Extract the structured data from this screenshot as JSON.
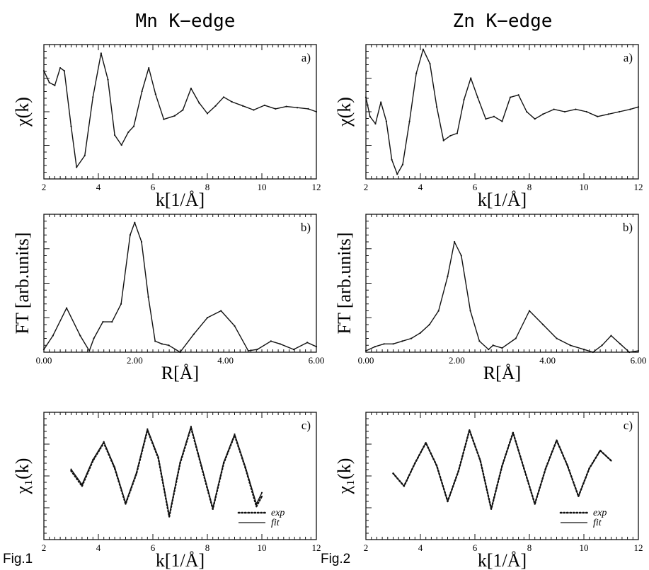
{
  "column_titles": [
    "Mn K−edge",
    "Zn K−edge"
  ],
  "figure_labels": [
    "Fig.1",
    "Fig.2"
  ],
  "chart_data": [
    {
      "id": "mn-a",
      "type": "line",
      "panel_label": "a)",
      "figure": "Fig.1",
      "xlabel": "k[1/Å]",
      "ylabel": "χ(k)",
      "xlim": [
        2,
        12
      ],
      "ylim": [
        -1.3,
        1.0
      ],
      "xticks": [
        2,
        4,
        6,
        8,
        10,
        12
      ],
      "xtick_labels": [
        "2",
        "4",
        "6",
        "8",
        "10",
        "12"
      ],
      "series": [
        {
          "style": "solid",
          "x": [
            2.0,
            2.2,
            2.4,
            2.6,
            2.75,
            3.0,
            3.2,
            3.5,
            3.8,
            4.1,
            4.35,
            4.6,
            4.85,
            5.1,
            5.3,
            5.6,
            5.85,
            6.1,
            6.4,
            6.8,
            7.1,
            7.4,
            7.7,
            8.0,
            8.3,
            8.6,
            8.9,
            9.3,
            9.7,
            10.1,
            10.5,
            10.9,
            11.3,
            11.7,
            12.0
          ],
          "y": [
            0.55,
            0.35,
            0.3,
            0.6,
            0.55,
            -0.4,
            -1.1,
            -0.9,
            0.1,
            0.85,
            0.4,
            -0.55,
            -0.72,
            -0.5,
            -0.4,
            0.2,
            0.6,
            0.15,
            -0.28,
            -0.22,
            -0.12,
            0.25,
            0.0,
            -0.18,
            -0.05,
            0.1,
            0.02,
            -0.05,
            -0.12,
            -0.04,
            -0.1,
            -0.06,
            -0.08,
            -0.1,
            -0.15
          ]
        }
      ]
    },
    {
      "id": "zn-a",
      "type": "line",
      "panel_label": "a)",
      "figure": "Fig.2",
      "xlabel": "k[1/Å]",
      "ylabel": "χ(k)",
      "xlim": [
        2,
        12
      ],
      "ylim": [
        -1.4,
        1.4
      ],
      "xticks": [
        2,
        4,
        6,
        8,
        10,
        12
      ],
      "xtick_labels": [
        "2",
        "4",
        "6",
        "8",
        "10",
        "12"
      ],
      "series": [
        {
          "style": "solid",
          "x": [
            2.0,
            2.15,
            2.35,
            2.55,
            2.75,
            2.95,
            3.15,
            3.35,
            3.6,
            3.85,
            4.1,
            4.35,
            4.6,
            4.85,
            5.1,
            5.35,
            5.6,
            5.85,
            6.1,
            6.4,
            6.7,
            7.0,
            7.3,
            7.6,
            7.9,
            8.2,
            8.5,
            8.9,
            9.3,
            9.7,
            10.1,
            10.5,
            10.9,
            11.3,
            11.7,
            12.0
          ],
          "y": [
            0.3,
            -0.1,
            -0.25,
            0.2,
            -0.2,
            -1.0,
            -1.3,
            -1.1,
            -0.2,
            0.8,
            1.3,
            1.0,
            0.1,
            -0.6,
            -0.5,
            -0.45,
            0.25,
            0.7,
            0.3,
            -0.15,
            -0.1,
            -0.2,
            0.3,
            0.35,
            0.0,
            -0.15,
            -0.05,
            0.05,
            0.0,
            0.05,
            0.0,
            -0.1,
            -0.05,
            0.0,
            0.05,
            0.1
          ]
        }
      ]
    },
    {
      "id": "mn-b",
      "type": "line",
      "panel_label": "b)",
      "figure": "Fig.1",
      "xlabel": "R[Å]",
      "ylabel": "FT [arb.units]",
      "xlim": [
        0,
        6
      ],
      "ylim": [
        0,
        1.0
      ],
      "xticks": [
        0,
        2,
        4,
        6
      ],
      "xtick_labels": [
        "0.00",
        "2.00",
        "4.00",
        "6.00"
      ],
      "series": [
        {
          "style": "solid",
          "x": [
            0.0,
            0.2,
            0.5,
            0.8,
            1.0,
            1.1,
            1.3,
            1.5,
            1.7,
            1.9,
            2.0,
            2.15,
            2.3,
            2.45,
            2.6,
            2.75,
            3.0,
            3.3,
            3.6,
            3.9,
            4.2,
            4.5,
            4.7,
            5.0,
            5.2,
            5.5,
            5.8,
            6.0
          ],
          "y": [
            0.02,
            0.12,
            0.32,
            0.12,
            0.01,
            0.1,
            0.22,
            0.22,
            0.35,
            0.85,
            0.94,
            0.8,
            0.4,
            0.08,
            0.06,
            0.05,
            0.0,
            0.13,
            0.25,
            0.3,
            0.19,
            0.01,
            0.02,
            0.08,
            0.06,
            0.02,
            0.07,
            0.04
          ]
        }
      ]
    },
    {
      "id": "zn-b",
      "type": "line",
      "panel_label": "b)",
      "figure": "Fig.2",
      "xlabel": "R[Å]",
      "ylabel": "FT [arb.units]",
      "xlim": [
        0,
        6
      ],
      "ylim": [
        0,
        1.0
      ],
      "xticks": [
        0,
        2,
        4,
        6
      ],
      "xtick_labels": [
        "0.00",
        "2.00",
        "4.00",
        "6.00"
      ],
      "series": [
        {
          "style": "solid",
          "x": [
            0.0,
            0.2,
            0.4,
            0.6,
            0.8,
            1.0,
            1.2,
            1.4,
            1.6,
            1.8,
            1.95,
            2.1,
            2.3,
            2.5,
            2.7,
            2.8,
            3.0,
            3.3,
            3.6,
            3.9,
            4.2,
            4.5,
            4.8,
            5.0,
            5.2,
            5.4,
            5.6,
            5.8,
            6.0
          ],
          "y": [
            0.01,
            0.04,
            0.06,
            0.06,
            0.08,
            0.1,
            0.14,
            0.2,
            0.3,
            0.55,
            0.8,
            0.7,
            0.3,
            0.08,
            0.02,
            0.05,
            0.03,
            0.1,
            0.3,
            0.2,
            0.1,
            0.05,
            0.02,
            0.0,
            0.05,
            0.12,
            0.06,
            0.0,
            0.01
          ]
        }
      ]
    },
    {
      "id": "mn-c",
      "type": "line",
      "panel_label": "c)",
      "figure": "Fig.1",
      "xlabel": "k[1/Å]",
      "ylabel": "χ₁(k)",
      "xlim": [
        2,
        12
      ],
      "ylim": [
        -1.3,
        1.2
      ],
      "xticks": [
        2,
        4,
        6,
        8,
        10,
        12
      ],
      "xtick_labels": [
        "2",
        "4",
        "6",
        "8",
        "10",
        "12"
      ],
      "legend": {
        "position": "bottom-right",
        "entries": [
          {
            "label": "exp",
            "style": "dotted"
          },
          {
            "label": "fit",
            "style": "solid"
          }
        ]
      },
      "series": [
        {
          "name": "exp",
          "style": "dotted",
          "x": [
            3.0,
            3.4,
            3.8,
            4.2,
            4.6,
            5.0,
            5.4,
            5.8,
            6.2,
            6.6,
            7.0,
            7.4,
            7.8,
            8.2,
            8.6,
            9.0,
            9.4,
            9.8,
            10.0
          ],
          "y": [
            0.05,
            -0.25,
            0.25,
            0.6,
            0.1,
            -0.6,
            0.0,
            0.85,
            0.3,
            -0.85,
            0.2,
            0.9,
            0.1,
            -0.7,
            0.2,
            0.75,
            0.1,
            -0.65,
            -0.45
          ]
        },
        {
          "name": "fit",
          "style": "solid",
          "x": [
            3.0,
            3.4,
            3.8,
            4.2,
            4.6,
            5.0,
            5.4,
            5.8,
            6.2,
            6.6,
            7.0,
            7.4,
            7.8,
            8.2,
            8.6,
            9.0,
            9.4,
            9.8,
            10.0
          ],
          "y": [
            0.08,
            -0.22,
            0.27,
            0.62,
            0.12,
            -0.58,
            0.02,
            0.87,
            0.32,
            -0.83,
            0.22,
            0.92,
            0.12,
            -0.68,
            0.22,
            0.77,
            0.12,
            -0.6,
            -0.38
          ]
        }
      ]
    },
    {
      "id": "zn-c",
      "type": "line",
      "panel_label": "c)",
      "figure": "Fig.2",
      "xlabel": "k[1/Å]",
      "ylabel": "χ₁(k)",
      "xlim": [
        2,
        12
      ],
      "ylim": [
        -1.3,
        1.2
      ],
      "xticks": [
        2,
        4,
        6,
        8,
        10,
        12
      ],
      "xtick_labels": [
        "2",
        "4",
        "6",
        "8",
        "10",
        "12"
      ],
      "legend": {
        "position": "bottom-right",
        "entries": [
          {
            "label": "exp",
            "style": "dotted"
          },
          {
            "label": "fit",
            "style": "solid"
          }
        ]
      },
      "series": [
        {
          "name": "exp",
          "style": "dotted",
          "x": [
            3.0,
            3.4,
            3.8,
            4.2,
            4.6,
            5.0,
            5.4,
            5.8,
            6.2,
            6.6,
            7.0,
            7.4,
            7.8,
            8.2,
            8.6,
            9.0,
            9.4,
            9.8,
            10.2,
            10.6,
            11.0
          ],
          "y": [
            0.0,
            -0.25,
            0.2,
            0.6,
            0.15,
            -0.55,
            0.05,
            0.85,
            0.25,
            -0.7,
            0.15,
            0.8,
            0.1,
            -0.6,
            0.1,
            0.65,
            0.15,
            -0.45,
            0.1,
            0.45,
            0.25
          ]
        },
        {
          "name": "fit",
          "style": "solid",
          "x": [
            3.0,
            3.4,
            3.8,
            4.2,
            4.6,
            5.0,
            5.4,
            5.8,
            6.2,
            6.6,
            7.0,
            7.4,
            7.8,
            8.2,
            8.6,
            9.0,
            9.4,
            9.8,
            10.2,
            10.6,
            11.0
          ],
          "y": [
            0.0,
            -0.25,
            0.2,
            0.6,
            0.15,
            -0.55,
            0.05,
            0.85,
            0.25,
            -0.7,
            0.15,
            0.8,
            0.1,
            -0.6,
            0.1,
            0.65,
            0.15,
            -0.45,
            0.1,
            0.45,
            0.25
          ]
        }
      ]
    }
  ]
}
